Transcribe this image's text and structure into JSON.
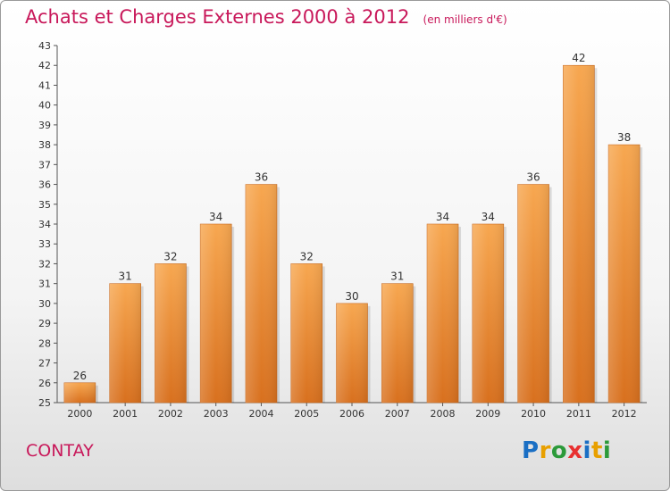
{
  "header": {
    "title": "Achats et Charges Externes 2000 à 2012",
    "unit_note": "(en milliers d'€)"
  },
  "footer": {
    "commune": "CONTAY",
    "logo_text": "Proxiti",
    "logo_colors": [
      "#1a6fc4",
      "#e8a000",
      "#2c9a3a",
      "#e83030",
      "#1a6fc4",
      "#e8a000",
      "#2c9a3a"
    ]
  },
  "chart_data": {
    "type": "bar",
    "title": "Achats et Charges Externes 2000 à 2012",
    "subtitle": "(en milliers d'€)",
    "categories": [
      "2000",
      "2001",
      "2002",
      "2003",
      "2004",
      "2005",
      "2006",
      "2007",
      "2008",
      "2009",
      "2010",
      "2011",
      "2012"
    ],
    "values": [
      26,
      31,
      32,
      34,
      36,
      32,
      30,
      31,
      34,
      34,
      36,
      42,
      38
    ],
    "ylim": [
      25,
      43
    ],
    "ytick_step": 1,
    "grid": false,
    "bar_color": "#f0903a",
    "xlabel": "",
    "ylabel": ""
  }
}
